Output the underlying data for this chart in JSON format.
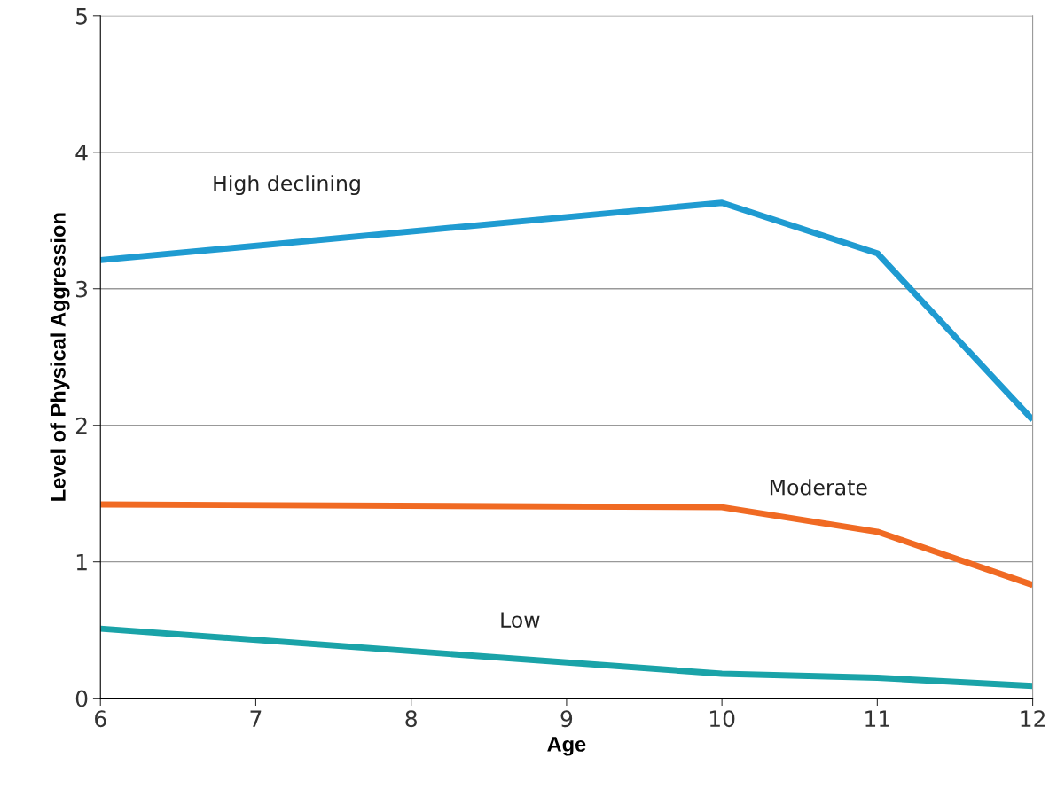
{
  "chart_data": {
    "type": "line",
    "xlabel": "Age",
    "ylabel": "Level of Physical Aggression",
    "x": [
      6,
      10,
      11,
      12
    ],
    "series": [
      {
        "name": "High declining",
        "color": "#1f9bd1",
        "values": [
          3.21,
          3.63,
          3.26,
          2.04
        ]
      },
      {
        "name": "Moderate",
        "color": "#f06a23",
        "values": [
          1.42,
          1.4,
          1.22,
          0.83
        ]
      },
      {
        "name": "Low",
        "color": "#1aa3a8",
        "values": [
          0.51,
          0.18,
          0.15,
          0.09
        ]
      }
    ],
    "xlim": [
      6,
      12
    ],
    "xticks": [
      6,
      7,
      8,
      9,
      10,
      11,
      12
    ],
    "ylim": [
      0,
      5
    ],
    "yticks": [
      0,
      1,
      2,
      3,
      4,
      5
    ],
    "grid": "y",
    "legend": false,
    "marker": "none",
    "line_style": "solid"
  }
}
